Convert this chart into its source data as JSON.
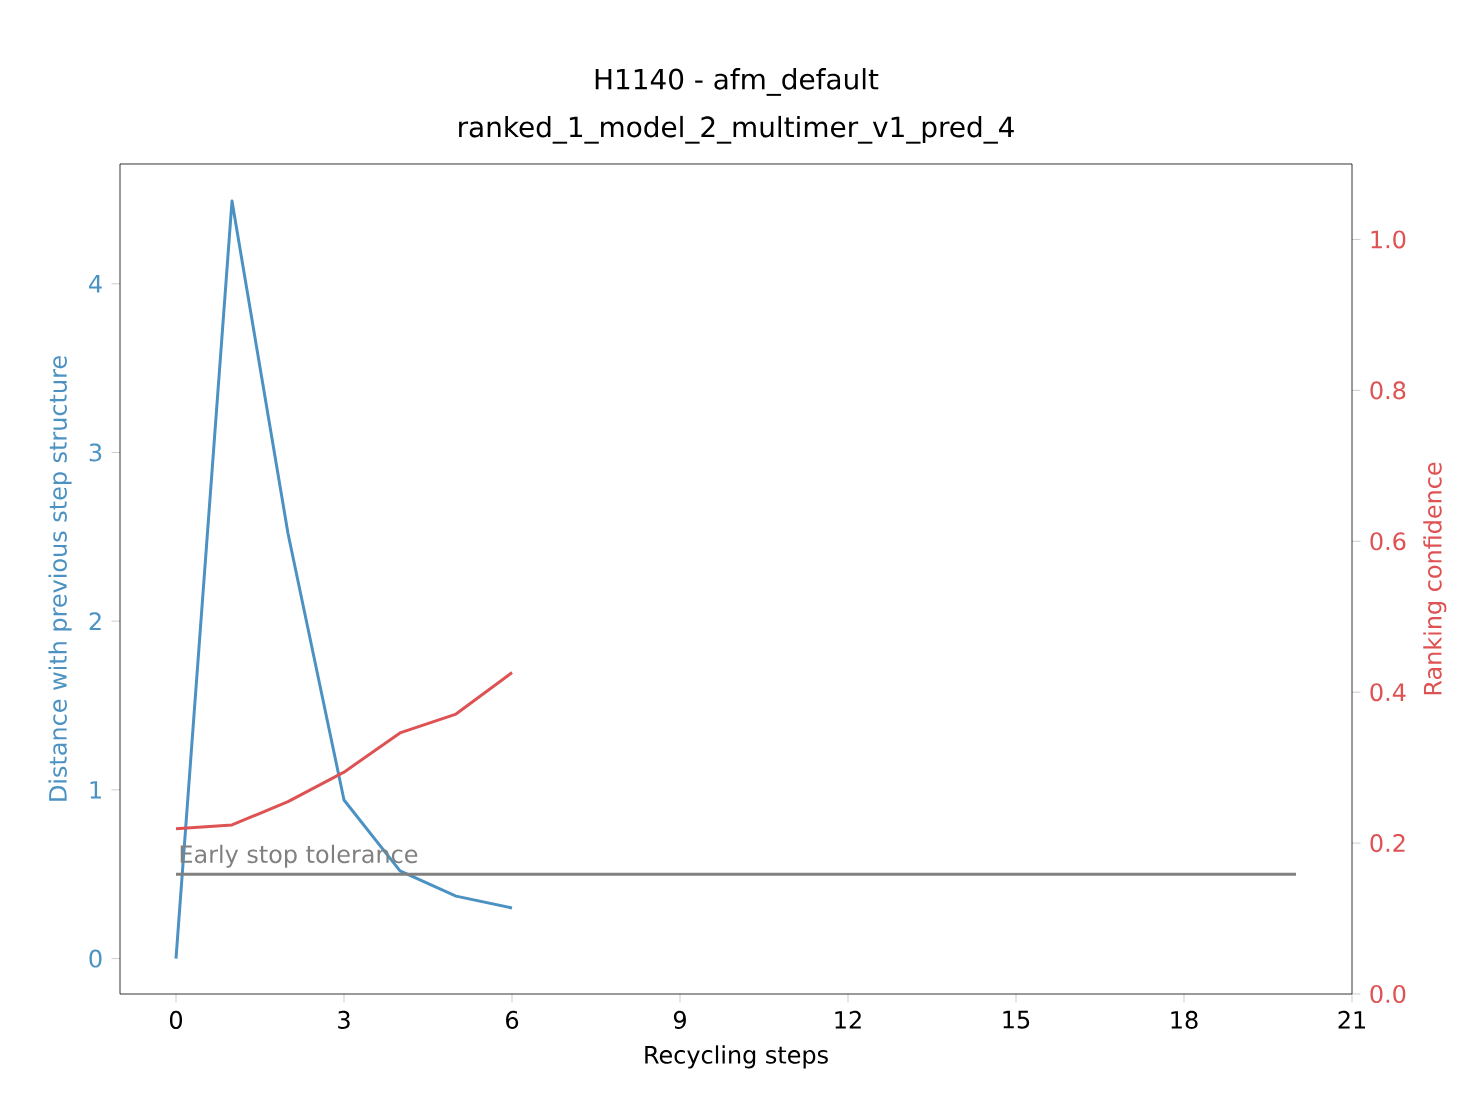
{
  "chart_data": {
    "type": "line",
    "title": "H1140 - afm_default",
    "subtitle": "ranked_1_model_2_multimer_v1_pred_4",
    "xlabel": "Recycling steps",
    "ylabel": "Distance with previous step structure",
    "y2label": "Ranking confidence",
    "x": [
      0,
      1,
      2,
      3,
      4,
      5,
      6
    ],
    "series": [
      {
        "color": "#4b92c3",
        "values": [
          0,
          4.49,
          2.52,
          0.94,
          0.52,
          0.37,
          0.3
        ]
      },
      {
        "color": "#de5253",
        "axis": "y2",
        "values": [
          0.219,
          0.224,
          0.255,
          0.294,
          0.346,
          0.371,
          0.426
        ]
      },
      {
        "color": "#808080",
        "x": [
          0,
          20
        ],
        "values": [
          0.5,
          0.5
        ]
      }
    ],
    "annotations": [
      {
        "text": "Early stop tolerance",
        "x": 0,
        "y": 0.5
      }
    ],
    "xlim": [
      -1,
      21
    ],
    "xticks": [
      0,
      3,
      6,
      9,
      12,
      15,
      18,
      21
    ],
    "ylim": [
      -0.21,
      4.71
    ],
    "yticks": [
      0,
      1,
      2,
      3,
      4
    ],
    "y2lim": [
      0,
      1.1
    ],
    "y2ticks": [
      {
        "value": 0,
        "label": "0.0"
      },
      0.2,
      0.4,
      0.6,
      0.8,
      {
        "value": 1,
        "label": "1.0"
      }
    ]
  }
}
